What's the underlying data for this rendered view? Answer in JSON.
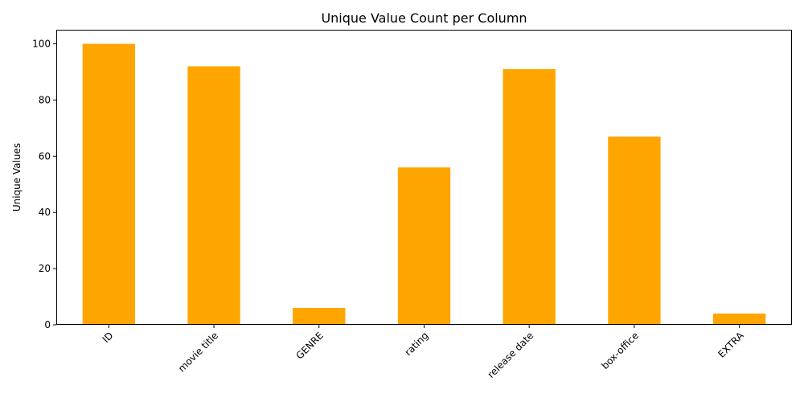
{
  "chart_data": {
    "type": "bar",
    "title": "Unique Value Count per Column",
    "xlabel": "",
    "ylabel": "Unique Values",
    "categories": [
      "ID",
      "movie title",
      "GENRE",
      "rating",
      "release date",
      "box-office",
      "EXTRA"
    ],
    "values": [
      100,
      92,
      6,
      56,
      91,
      67,
      4
    ],
    "ylim": [
      0,
      105
    ],
    "yticks": [
      0,
      20,
      40,
      60,
      80,
      100
    ],
    "grid": false,
    "legend": "none",
    "bar_color": "#FFA500",
    "x_tick_rotation_deg": 45
  }
}
